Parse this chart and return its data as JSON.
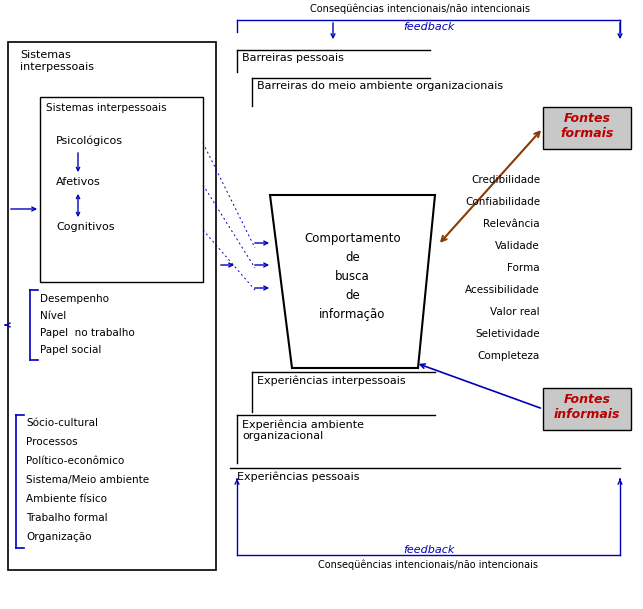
{
  "title_top": "Conseqüências intencionais/não intencionais",
  "feedback_label": "feedback",
  "feedback_label_bottom": "feedback",
  "consequences_bottom": "Conseqüências intencionais/não intencionais",
  "left_box_outer_text": "Sistemas\ninterpessoais",
  "inner_box_texts": [
    "Sistemas interpessoais",
    "Psicológicos",
    "Afetivos",
    "Cognitivos"
  ],
  "role_texts": [
    "Desempenho",
    "Nível",
    "Papel  no trabalho",
    "Papel social"
  ],
  "socio_texts": [
    "Sócio-cultural",
    "Processos",
    "Político-econômico",
    "Sistema/Meio ambiente",
    "Ambiente físico",
    "Trabalho formal",
    "Organização"
  ],
  "barrier_personal": "Barreiras pessoais",
  "barrier_org": "Barreiras do meio ambiente organizacionais",
  "center_box_text": "Comportamento\nde\nbusca\nde\ninformação",
  "exp_interpessoal": "Experiências interpessoais",
  "exp_ambiente": "Experiência ambiente\norganizacional",
  "exp_pessoais": "Experiências pessoais",
  "quality_labels": [
    "Credibilidade",
    "Confiabilidade",
    "Relevância",
    "Validade",
    "Forma",
    "Acessibilidade",
    "Valor real",
    "Seletividade",
    "Completeza"
  ],
  "blue": "#0000bb",
  "brown": "#8B3A00",
  "black": "#000000",
  "gray_bg": "#c8c8c8",
  "red_fontes": "#bb0000",
  "fig_w": 6.43,
  "fig_h": 6.09,
  "dpi": 100
}
